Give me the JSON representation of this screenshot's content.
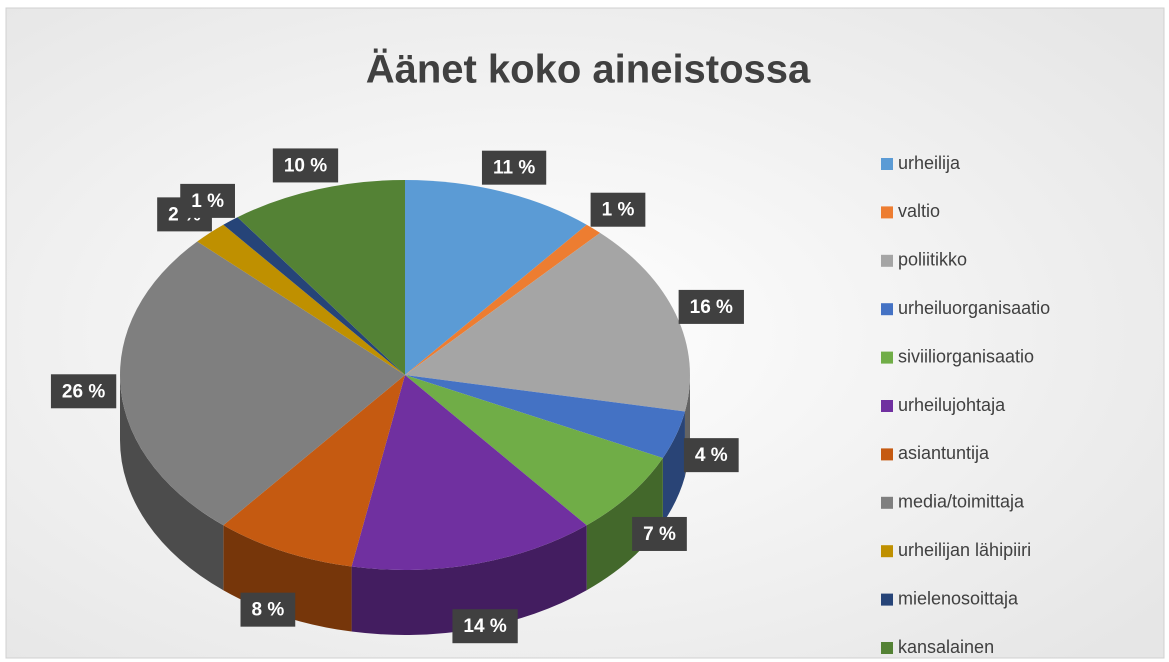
{
  "chart_data": {
    "type": "pie",
    "title": "Äänet koko aineistossa",
    "categories": [
      "urheilija",
      "valtio",
      "poliitikko",
      "urheiluorganisaatio",
      "siviiliorganisaatio",
      "urheilujohtaja",
      "asiantuntija",
      "media/toimittaja",
      "urheilijan lähipiiri",
      "mielenosoittaja",
      "kansalainen"
    ],
    "values": [
      11,
      1,
      16,
      4,
      7,
      14,
      8,
      26,
      2,
      1,
      10
    ],
    "value_labels": [
      "11 %",
      "1 %",
      "16 %",
      "4 %",
      "7 %",
      "14 %",
      "8 %",
      "26 %",
      "2 %",
      "1 %",
      "10 %"
    ],
    "colors": [
      "#5b9bd5",
      "#ed7d31",
      "#a5a5a5",
      "#4472c4",
      "#70ad47",
      "#7030a0",
      "#c55a11",
      "#7f7f7f",
      "#bf9000",
      "#264478",
      "#548235"
    ],
    "legend": "right"
  }
}
